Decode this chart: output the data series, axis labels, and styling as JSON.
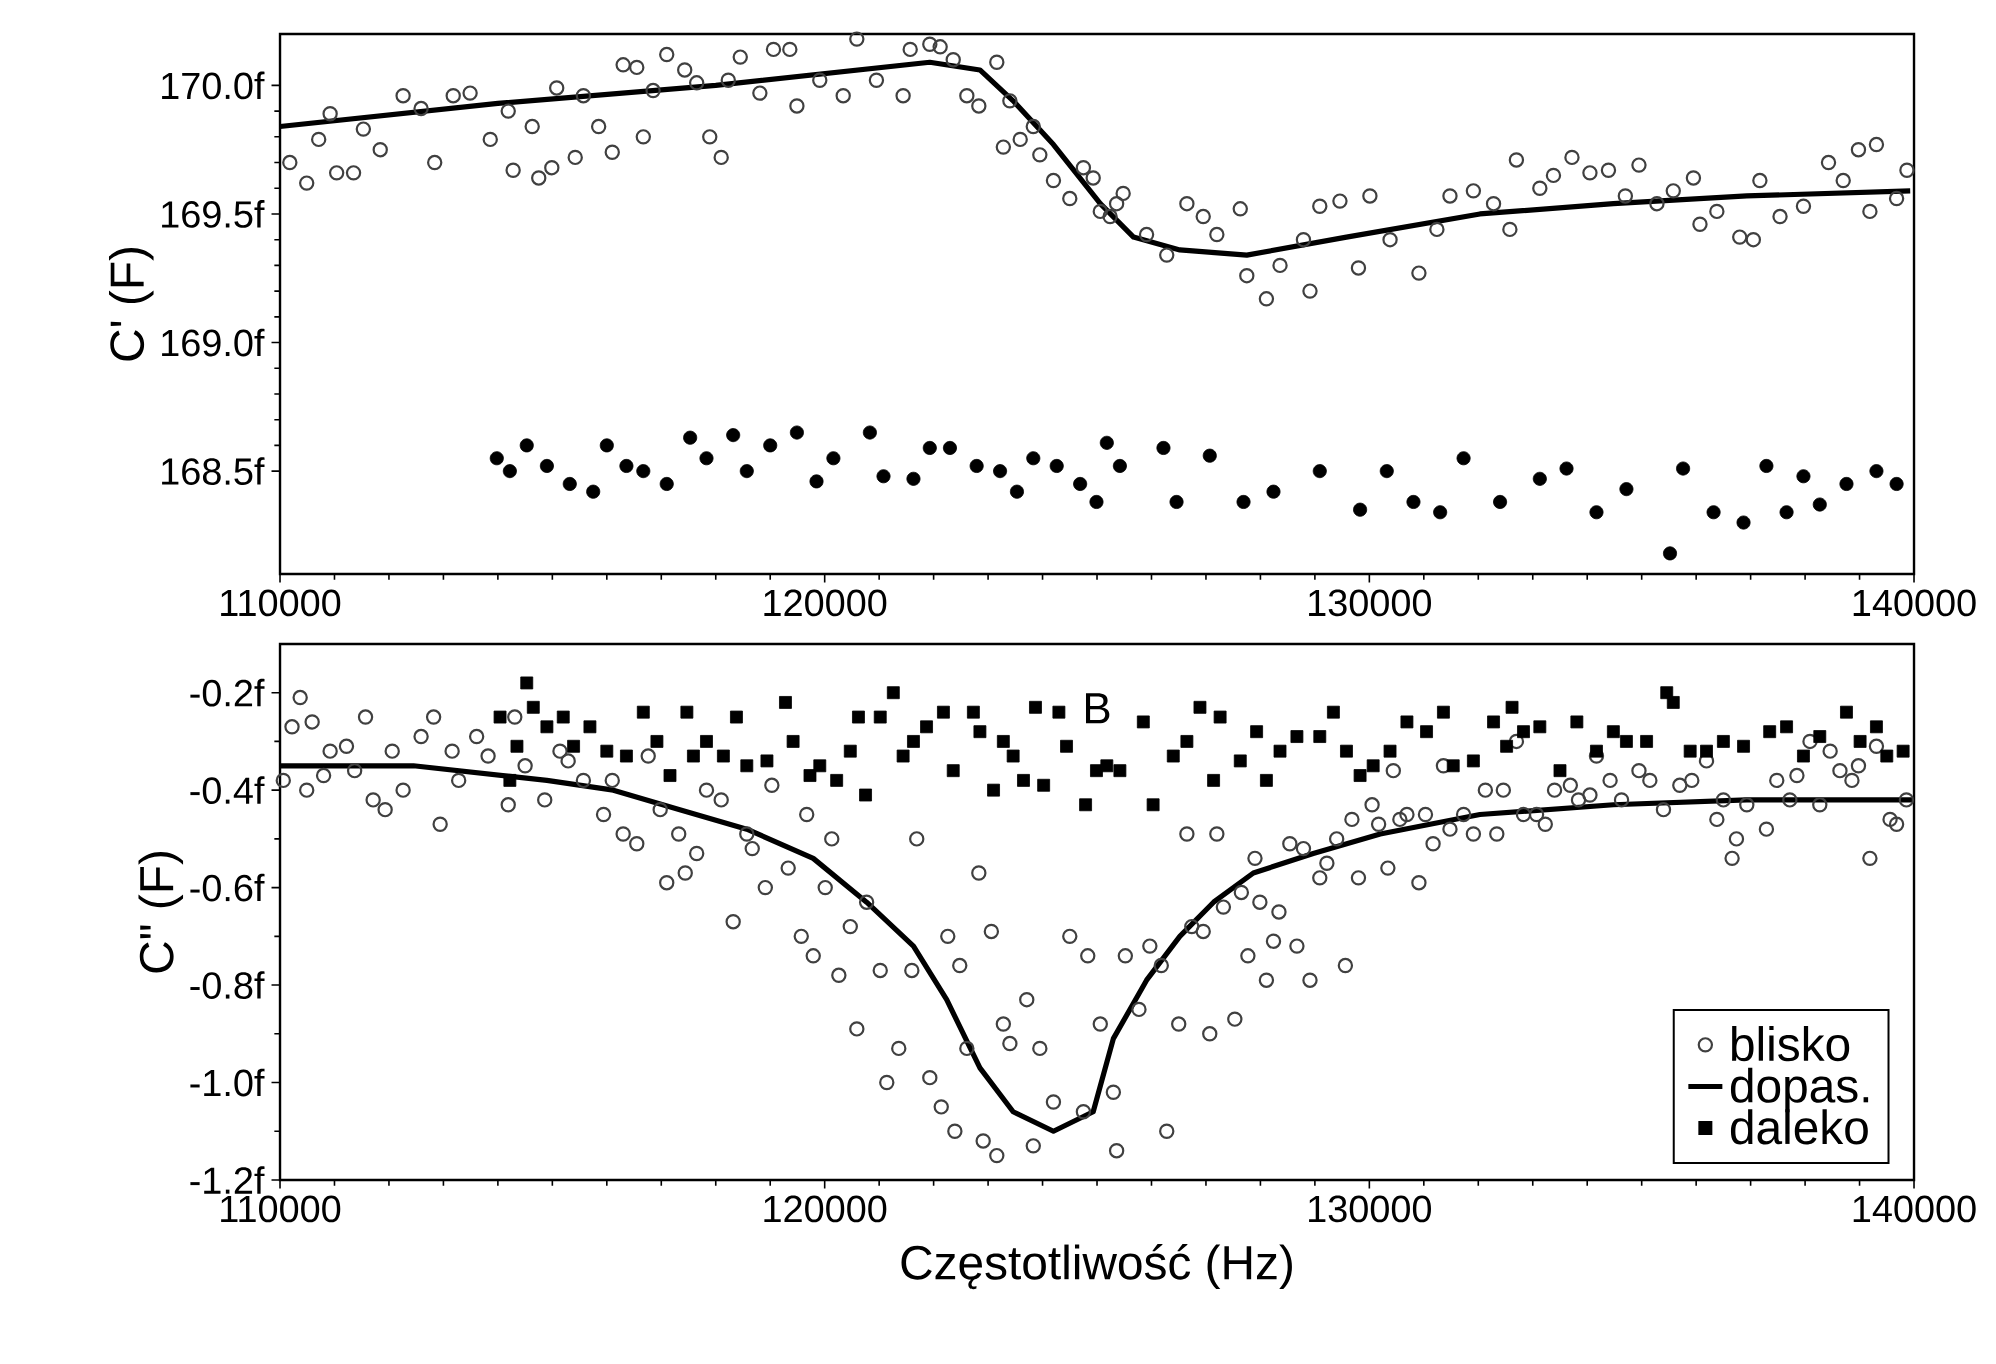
{
  "chart_data": [
    {
      "type": "scatter",
      "ylabel": "C' (F)",
      "xlim": [
        110000,
        140000
      ],
      "xticks": [
        110000,
        120000,
        130000,
        140000
      ],
      "ylim": [
        168.1,
        170.2
      ],
      "yticks": [
        {
          "value": 168.5,
          "label": "168.5f"
        },
        {
          "value": 169.0,
          "label": "169.0f"
        },
        {
          "value": 169.5,
          "label": "169.5f"
        },
        {
          "value": 170.0,
          "label": "170.0f"
        }
      ],
      "grid": false,
      "legend": false,
      "series": [
        {
          "type": "scatter",
          "marker": "circle",
          "color": "#404040",
          "x": [
            110180,
            110490,
            110710,
            110920,
            111040,
            111350,
            111530,
            111840,
            112260,
            112590,
            112840,
            113180,
            113490,
            113860,
            114190,
            114280,
            114630,
            114750,
            114990,
            115080,
            115420,
            115570,
            115850,
            116100,
            116300,
            116550,
            116670,
            116850,
            117100,
            117430,
            117650,
            117890,
            118100,
            118230,
            118450,
            118810,
            119060,
            119360,
            119490,
            119910,
            120340,
            120590,
            120950,
            121440,
            121570,
            121930,
            122120,
            122360,
            122610,
            122830,
            123160,
            123280,
            123400,
            123590,
            123830,
            123950,
            124200,
            124500,
            124750,
            124930,
            125060,
            125240,
            125360,
            125480,
            125910,
            126280,
            126650,
            126950,
            127200,
            127630,
            127750,
            128110,
            128360,
            128790,
            128910,
            129090,
            129460,
            129800,
            130010,
            130380,
            130910,
            131240,
            131480,
            131910,
            132280,
            132580,
            132700,
            133130,
            133380,
            133720,
            134050,
            134390,
            134700,
            134950,
            135280,
            135580,
            135950,
            136070,
            136380,
            136800,
            137050,
            137170,
            137540,
            137970,
            138430,
            138700,
            138980,
            139190,
            139310,
            139680,
            139870
          ],
          "values": [
            169.7,
            169.62,
            169.79,
            169.89,
            169.66,
            169.66,
            169.83,
            169.75,
            169.96,
            169.91,
            169.7,
            169.96,
            169.97,
            169.79,
            169.9,
            169.67,
            169.84,
            169.64,
            169.68,
            169.99,
            169.72,
            169.96,
            169.84,
            169.74,
            170.08,
            170.07,
            169.8,
            169.98,
            170.12,
            170.06,
            170.01,
            169.8,
            169.72,
            170.02,
            170.11,
            169.97,
            170.14,
            170.14,
            169.92,
            170.02,
            169.96,
            170.18,
            170.02,
            169.96,
            170.14,
            170.16,
            170.15,
            170.1,
            169.96,
            169.92,
            170.09,
            169.76,
            169.94,
            169.79,
            169.84,
            169.73,
            169.63,
            169.56,
            169.68,
            169.64,
            169.51,
            169.49,
            169.54,
            169.58,
            169.42,
            169.34,
            169.54,
            169.49,
            169.42,
            169.52,
            169.26,
            169.17,
            169.3,
            169.4,
            169.2,
            169.53,
            169.55,
            169.29,
            169.57,
            169.4,
            169.27,
            169.44,
            169.57,
            169.59,
            169.54,
            169.44,
            169.71,
            169.6,
            169.65,
            169.72,
            169.66,
            169.67,
            169.57,
            169.69,
            169.54,
            169.59,
            169.64,
            169.46,
            169.51,
            169.41,
            169.4,
            169.63,
            169.49,
            169.53,
            169.7,
            169.63,
            169.75,
            169.51,
            169.77,
            169.56,
            169.67
          ]
        },
        {
          "type": "line",
          "marker": "none",
          "line_style": "solid",
          "color": "#000000",
          "x": [
            110000,
            114000,
            118000,
            121930,
            122850,
            123460,
            124200,
            125060,
            125670,
            126520,
            127750,
            129580,
            132030,
            134480,
            136930,
            139930
          ],
          "values": [
            169.84,
            169.93,
            170.0,
            170.09,
            170.06,
            169.94,
            169.77,
            169.54,
            169.41,
            169.36,
            169.34,
            169.41,
            169.5,
            169.54,
            169.57,
            169.59
          ]
        },
        {
          "type": "scatter",
          "marker": "circle",
          "color": "#000000",
          "x": [
            113980,
            114220,
            114530,
            114900,
            115320,
            115750,
            116000,
            116360,
            116670,
            117100,
            117530,
            117830,
            118320,
            118570,
            119000,
            119490,
            119850,
            120160,
            120830,
            121080,
            121630,
            121930,
            122300,
            122790,
            123220,
            123530,
            123830,
            124260,
            124690,
            124990,
            125180,
            125420,
            126220,
            126460,
            127070,
            127690,
            128240,
            129090,
            129830,
            130320,
            130810,
            131300,
            131730,
            132400,
            133130,
            133620,
            134170,
            134720,
            135520,
            135760,
            136320,
            136870,
            137290,
            137660,
            137970,
            138270,
            138760,
            139310,
            139680
          ],
          "values": [
            168.55,
            168.5,
            168.6,
            168.52,
            168.45,
            168.42,
            168.6,
            168.52,
            168.5,
            168.45,
            168.63,
            168.55,
            168.64,
            168.5,
            168.6,
            168.65,
            168.46,
            168.55,
            168.65,
            168.48,
            168.47,
            168.59,
            168.59,
            168.52,
            168.5,
            168.42,
            168.55,
            168.52,
            168.45,
            168.38,
            168.61,
            168.52,
            168.59,
            168.38,
            168.56,
            168.38,
            168.42,
            168.5,
            168.35,
            168.5,
            168.38,
            168.34,
            168.55,
            168.38,
            168.47,
            168.51,
            168.34,
            168.43,
            168.18,
            168.51,
            168.34,
            168.3,
            168.52,
            168.34,
            168.48,
            168.37,
            168.45,
            168.5,
            168.45
          ]
        }
      ]
    },
    {
      "type": "scatter",
      "xlabel": "Częstotliwość  (Hz)",
      "ylabel": "C\" (F)",
      "xlim": [
        110000,
        140000
      ],
      "xticks": [
        110000,
        120000,
        130000,
        140000
      ],
      "ylim": [
        -1.2,
        -0.1
      ],
      "yticks": [
        {
          "value": -1.2,
          "label": "-1.2f"
        },
        {
          "value": -1.0,
          "label": "-1.0f"
        },
        {
          "value": -0.8,
          "label": "-0.8f"
        },
        {
          "value": -0.6,
          "label": "-0.6f"
        },
        {
          "value": -0.4,
          "label": "-0.4f"
        },
        {
          "value": -0.2,
          "label": "-0.2f"
        }
      ],
      "grid": false,
      "legend": "bottom right",
      "annotations": [
        "B"
      ],
      "series": [
        {
          "name": "blisko",
          "type": "scatter",
          "marker": "circle",
          "color": "#404040",
          "x": [
            110060,
            110220,
            110370,
            110490,
            110590,
            110800,
            110920,
            111220,
            111370,
            111570,
            111710,
            111930,
            112060,
            112260,
            112590,
            112820,
            112940,
            113160,
            113280,
            113610,
            113820,
            114190,
            114310,
            114500,
            114860,
            115140,
            115290,
            115570,
            115940,
            116100,
            116300,
            116550,
            116760,
            116980,
            117100,
            117320,
            117440,
            117650,
            117830,
            118100,
            118320,
            118570,
            118670,
            118910,
            119030,
            119330,
            119570,
            119670,
            119790,
            120010,
            120130,
            120260,
            120470,
            120590,
            120770,
            121020,
            121140,
            121360,
            121600,
            121690,
            121930,
            122140,
            122260,
            122390,
            122480,
            122610,
            122830,
            122910,
            123060,
            123160,
            123280,
            123400,
            123710,
            123830,
            123950,
            124200,
            124500,
            124750,
            124830,
            125060,
            125300,
            125360,
            125520,
            125770,
            125970,
            126180,
            126280,
            126500,
            126650,
            126740,
            126950,
            127070,
            127200,
            127320,
            127530,
            127650,
            127770,
            127900,
            127990,
            128110,
            128240,
            128340,
            128540,
            128670,
            128790,
            128910,
            129090,
            129220,
            129400,
            129560,
            129680,
            129800,
            130050,
            130170,
            130340,
            130440,
            130560,
            130690,
            130910,
            131030,
            131170,
            131360,
            131480,
            131730,
            131910,
            132130,
            132340,
            132460,
            132700,
            132830,
            133070,
            133230,
            133400,
            133690,
            133840,
            134050,
            134170,
            134420,
            134630,
            134950,
            135150,
            135400,
            135700,
            135920,
            136190,
            136380,
            136500,
            136660,
            136740,
            136930,
            137290,
            137480,
            137720,
            137850,
            138090,
            138270,
            138460,
            138640,
            138860,
            138980,
            139190,
            139310,
            139560,
            139680,
            139860
          ],
          "values": [
            -0.38,
            -0.27,
            -0.21,
            -0.4,
            -0.26,
            -0.37,
            -0.32,
            -0.31,
            -0.36,
            -0.25,
            -0.42,
            -0.44,
            -0.32,
            -0.4,
            -0.29,
            -0.25,
            -0.47,
            -0.32,
            -0.38,
            -0.29,
            -0.33,
            -0.43,
            -0.25,
            -0.35,
            -0.42,
            -0.32,
            -0.34,
            -0.38,
            -0.45,
            -0.38,
            -0.49,
            -0.51,
            -0.33,
            -0.44,
            -0.59,
            -0.49,
            -0.57,
            -0.53,
            -0.4,
            -0.42,
            -0.67,
            -0.49,
            -0.52,
            -0.6,
            -0.39,
            -0.56,
            -0.7,
            -0.45,
            -0.74,
            -0.6,
            -0.5,
            -0.78,
            -0.68,
            -0.89,
            -0.63,
            -0.77,
            -1.0,
            -0.93,
            -0.77,
            -0.5,
            -0.99,
            -1.05,
            -0.7,
            -1.1,
            -0.76,
            -0.93,
            -0.57,
            -1.12,
            -0.69,
            -1.15,
            -0.88,
            -0.92,
            -0.83,
            -1.13,
            -0.93,
            -1.04,
            -0.7,
            -1.06,
            -0.74,
            -0.88,
            -1.02,
            -1.14,
            -0.74,
            -0.85,
            -0.72,
            -0.76,
            -1.1,
            -0.88,
            -0.49,
            -0.68,
            -0.69,
            -0.9,
            -0.49,
            -0.64,
            -0.87,
            -0.61,
            -0.74,
            -0.54,
            -0.63,
            -0.79,
            -0.71,
            -0.65,
            -0.51,
            -0.72,
            -0.52,
            -0.79,
            -0.58,
            -0.55,
            -0.5,
            -0.76,
            -0.46,
            -0.58,
            -0.43,
            -0.47,
            -0.56,
            -0.36,
            -0.46,
            -0.45,
            -0.59,
            -0.45,
            -0.51,
            -0.35,
            -0.48,
            -0.45,
            -0.49,
            -0.4,
            -0.49,
            -0.4,
            -0.3,
            -0.45,
            -0.45,
            -0.47,
            -0.4,
            -0.39,
            -0.42,
            -0.41,
            -0.33,
            -0.38,
            -0.42,
            -0.36,
            -0.38,
            -0.44,
            -0.39,
            -0.38,
            -0.34,
            -0.46,
            -0.42,
            -0.54,
            -0.5,
            -0.43,
            -0.48,
            -0.38,
            -0.42,
            -0.37,
            -0.3,
            -0.43,
            -0.32,
            -0.36,
            -0.38,
            -0.35,
            -0.54,
            -0.31,
            -0.46,
            -0.47,
            -0.42
          ]
        },
        {
          "name": "dopas.",
          "type": "line",
          "marker": "none",
          "line_style": "solid",
          "color": "#000000",
          "x": [
            110000,
            112450,
            114900,
            116120,
            117340,
            118570,
            119790,
            120770,
            121630,
            122240,
            122850,
            123460,
            124200,
            124930,
            125300,
            125910,
            126520,
            127140,
            127870,
            128970,
            130200,
            132030,
            134480,
            136930,
            140000
          ],
          "values": [
            -0.35,
            -0.35,
            -0.38,
            -0.4,
            -0.44,
            -0.48,
            -0.54,
            -0.63,
            -0.72,
            -0.83,
            -0.97,
            -1.06,
            -1.1,
            -1.06,
            -0.91,
            -0.79,
            -0.7,
            -0.63,
            -0.57,
            -0.53,
            -0.49,
            -0.45,
            -0.43,
            -0.42,
            -0.42
          ]
        },
        {
          "name": "daleko",
          "type": "scatter",
          "marker": "square",
          "color": "#000000",
          "x": [
            114040,
            114220,
            114350,
            114530,
            114650,
            114900,
            115200,
            115390,
            115690,
            116000,
            116360,
            116670,
            116920,
            117160,
            117470,
            117590,
            117830,
            118140,
            118380,
            118570,
            118940,
            119280,
            119420,
            119730,
            119910,
            120220,
            120470,
            120620,
            120750,
            121020,
            121260,
            121440,
            121630,
            121870,
            122180,
            122360,
            122730,
            122850,
            123100,
            123280,
            123460,
            123650,
            123870,
            124020,
            124300,
            124440,
            124790,
            124990,
            125180,
            125420,
            125850,
            126030,
            126400,
            126650,
            126890,
            127140,
            127260,
            127630,
            127930,
            128110,
            128360,
            128670,
            129090,
            129340,
            129580,
            129830,
            130070,
            130380,
            130690,
            131050,
            131360,
            131540,
            131910,
            132280,
            132520,
            132620,
            132830,
            133130,
            133500,
            133810,
            134170,
            134480,
            134720,
            135090,
            135460,
            135580,
            135890,
            136190,
            136500,
            136870,
            137350,
            137660,
            137970,
            138270,
            138760,
            139010,
            139310,
            139500,
            139800
          ],
          "values": [
            -0.25,
            -0.38,
            -0.31,
            -0.18,
            -0.23,
            -0.27,
            -0.25,
            -0.31,
            -0.27,
            -0.32,
            -0.33,
            -0.24,
            -0.3,
            -0.37,
            -0.24,
            -0.33,
            -0.3,
            -0.33,
            -0.25,
            -0.35,
            -0.34,
            -0.22,
            -0.3,
            -0.37,
            -0.35,
            -0.38,
            -0.32,
            -0.25,
            -0.41,
            -0.25,
            -0.2,
            -0.33,
            -0.3,
            -0.27,
            -0.24,
            -0.36,
            -0.24,
            -0.28,
            -0.4,
            -0.3,
            -0.33,
            -0.38,
            -0.23,
            -0.39,
            -0.24,
            -0.31,
            -0.43,
            -0.36,
            -0.35,
            -0.36,
            -0.26,
            -0.43,
            -0.33,
            -0.3,
            -0.23,
            -0.38,
            -0.25,
            -0.34,
            -0.28,
            -0.38,
            -0.32,
            -0.29,
            -0.29,
            -0.24,
            -0.32,
            -0.37,
            -0.35,
            -0.32,
            -0.26,
            -0.28,
            -0.24,
            -0.35,
            -0.34,
            -0.26,
            -0.31,
            -0.23,
            -0.28,
            -0.27,
            -0.36,
            -0.26,
            -0.32,
            -0.28,
            -0.3,
            -0.3,
            -0.2,
            -0.22,
            -0.32,
            -0.32,
            -0.3,
            -0.31,
            -0.28,
            -0.27,
            -0.33,
            -0.29,
            -0.24,
            -0.3,
            -0.27,
            -0.33,
            -0.32
          ]
        }
      ]
    }
  ]
}
